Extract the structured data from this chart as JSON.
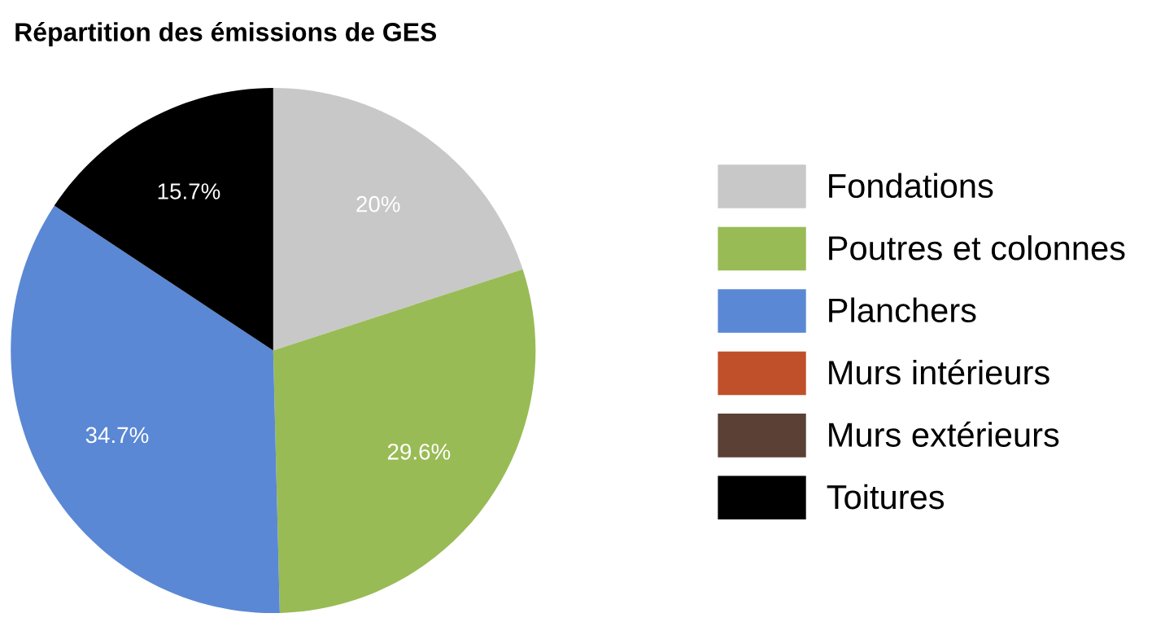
{
  "chart_data": {
    "type": "pie",
    "title": "Répartition des émissions de GES",
    "categories": [
      "Fondations",
      "Poutres et colonnes",
      "Planchers",
      "Murs intérieurs",
      "Murs extérieurs",
      "Toitures"
    ],
    "values": [
      20,
      29.6,
      34.7,
      0,
      0,
      15.7
    ],
    "colors": [
      "#c8c8c8",
      "#99bb55",
      "#5b88d4",
      "#c0502a",
      "#5a4035",
      "#000000"
    ],
    "value_labels": [
      "20%",
      "29.6%",
      "34.7%",
      null,
      null,
      "15.7%"
    ],
    "legend": "right"
  }
}
